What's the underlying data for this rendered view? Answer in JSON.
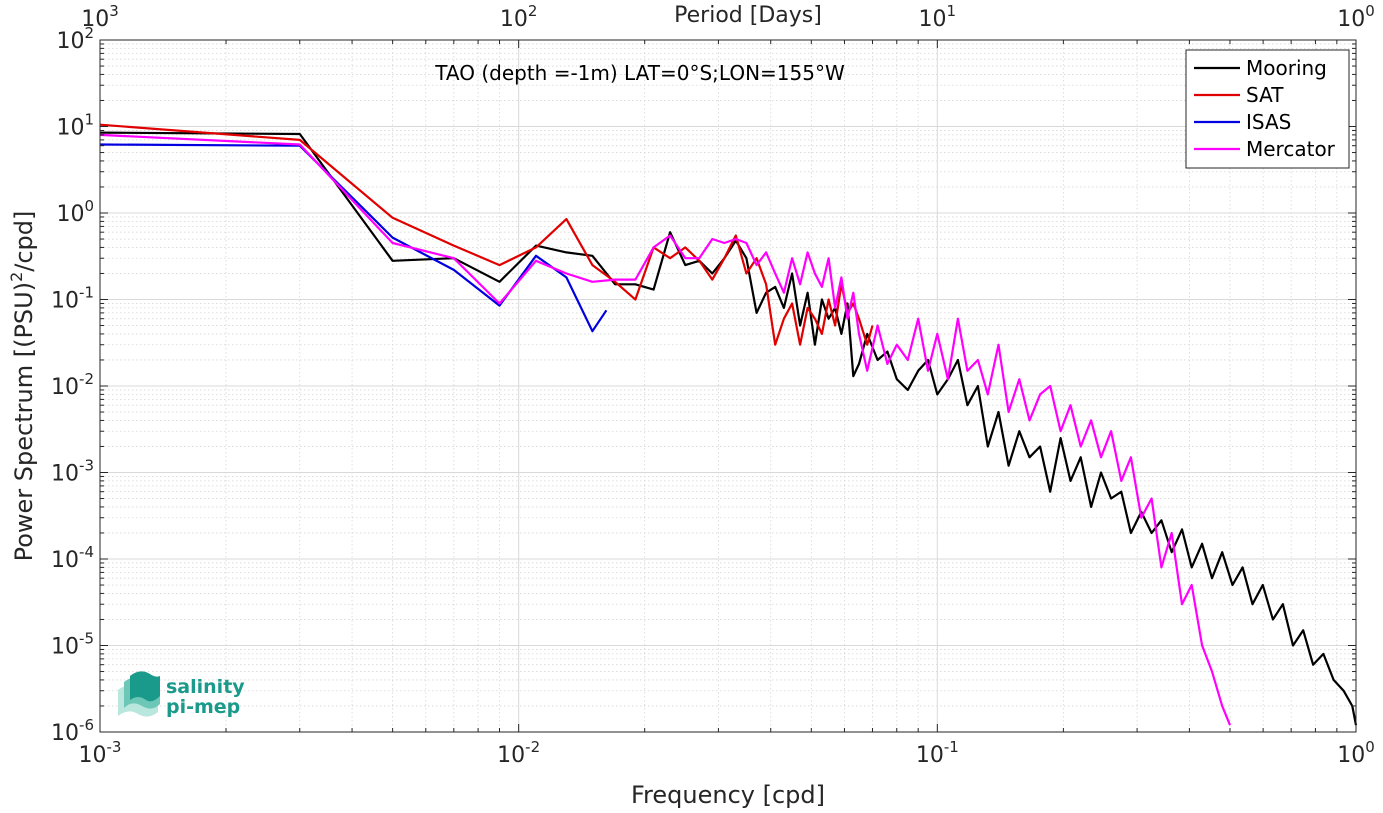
{
  "chart_data": {
    "type": "line",
    "title": "TAO (depth =-1m) LAT=0°S;LON=155°W",
    "xlabel": "Frequency [cpd]",
    "ylabel_main": "Power Spectrum [(PSU)",
    "ylabel_sup": "2",
    "ylabel_tail": "/cpd]",
    "top_xlabel": "Period [Days]",
    "xscale": "log",
    "yscale": "log",
    "xlim": [
      0.001,
      1
    ],
    "ylim": [
      1e-06,
      100
    ],
    "grid": true,
    "minor_grid": true,
    "legend_position": "top-right",
    "x_ticks": [
      {
        "value": 0.001,
        "base": "10",
        "exp": "-3"
      },
      {
        "value": 0.01,
        "base": "10",
        "exp": "-2"
      },
      {
        "value": 0.1,
        "base": "10",
        "exp": "-1"
      },
      {
        "value": 1,
        "base": "10",
        "exp": "0"
      }
    ],
    "top_ticks": [
      {
        "value": 0.001,
        "base": "10",
        "exp": "3"
      },
      {
        "value": 0.01,
        "base": "10",
        "exp": "2"
      },
      {
        "value": 0.1,
        "base": "10",
        "exp": "1"
      },
      {
        "value": 1,
        "base": "10",
        "exp": "0"
      }
    ],
    "y_ticks": [
      {
        "value": 100,
        "base": "10",
        "exp": "2"
      },
      {
        "value": 10,
        "base": "10",
        "exp": "1"
      },
      {
        "value": 1,
        "base": "10",
        "exp": "0"
      },
      {
        "value": 0.1,
        "base": "10",
        "exp": "-1"
      },
      {
        "value": 0.01,
        "base": "10",
        "exp": "-2"
      },
      {
        "value": 0.001,
        "base": "10",
        "exp": "-3"
      },
      {
        "value": 0.0001,
        "base": "10",
        "exp": "-4"
      },
      {
        "value": 1e-05,
        "base": "10",
        "exp": "-5"
      },
      {
        "value": 1e-06,
        "base": "10",
        "exp": "-6"
      }
    ],
    "series": [
      {
        "name": "Mooring",
        "color": "#000000",
        "x": [
          0.001,
          0.003,
          0.005,
          0.007,
          0.009,
          0.011,
          0.013,
          0.015,
          0.017,
          0.019,
          0.021,
          0.023,
          0.025,
          0.027,
          0.029,
          0.031,
          0.033,
          0.035,
          0.037,
          0.039,
          0.041,
          0.043,
          0.045,
          0.047,
          0.049,
          0.051,
          0.053,
          0.055,
          0.057,
          0.059,
          0.061,
          0.063,
          0.065,
          0.068,
          0.072,
          0.076,
          0.08,
          0.085,
          0.09,
          0.095,
          0.1,
          0.106,
          0.112,
          0.118,
          0.125,
          0.132,
          0.14,
          0.148,
          0.157,
          0.166,
          0.176,
          0.186,
          0.197,
          0.208,
          0.22,
          0.233,
          0.246,
          0.26,
          0.275,
          0.29,
          0.307,
          0.325,
          0.343,
          0.363,
          0.384,
          0.405,
          0.429,
          0.453,
          0.479,
          0.507,
          0.536,
          0.566,
          0.599,
          0.633,
          0.669,
          0.707,
          0.748,
          0.79,
          0.836,
          0.884,
          0.934,
          0.98,
          1.0
        ],
        "y": [
          8.5,
          8.2,
          0.28,
          0.3,
          0.16,
          0.42,
          0.35,
          0.32,
          0.15,
          0.15,
          0.13,
          0.6,
          0.25,
          0.28,
          0.2,
          0.3,
          0.48,
          0.3,
          0.07,
          0.12,
          0.14,
          0.08,
          0.2,
          0.05,
          0.12,
          0.03,
          0.1,
          0.06,
          0.08,
          0.04,
          0.09,
          0.013,
          0.018,
          0.04,
          0.02,
          0.025,
          0.012,
          0.009,
          0.015,
          0.02,
          0.008,
          0.012,
          0.02,
          0.006,
          0.01,
          0.002,
          0.005,
          0.0012,
          0.003,
          0.0015,
          0.002,
          0.0006,
          0.0025,
          0.0008,
          0.0015,
          0.0004,
          0.001,
          0.0005,
          0.0006,
          0.0002,
          0.00035,
          0.0002,
          0.00028,
          0.00012,
          0.00022,
          8e-05,
          0.00015,
          6e-05,
          0.00012,
          5e-05,
          8e-05,
          3e-05,
          5e-05,
          2e-05,
          3e-05,
          1e-05,
          1.5e-05,
          6e-06,
          8e-06,
          4e-06,
          3e-06,
          2e-06,
          1.2e-06
        ]
      },
      {
        "name": "SAT",
        "color": "#e00000",
        "x": [
          0.001,
          0.003,
          0.005,
          0.007,
          0.009,
          0.011,
          0.013,
          0.015,
          0.017,
          0.019,
          0.021,
          0.023,
          0.025,
          0.027,
          0.029,
          0.031,
          0.033,
          0.035,
          0.037,
          0.039,
          0.041,
          0.043,
          0.045,
          0.047,
          0.049,
          0.051,
          0.053,
          0.055,
          0.057,
          0.059,
          0.061,
          0.063,
          0.065,
          0.068,
          0.07
        ],
        "y": [
          10.5,
          7.0,
          0.88,
          0.42,
          0.25,
          0.4,
          0.85,
          0.25,
          0.16,
          0.1,
          0.4,
          0.3,
          0.4,
          0.28,
          0.17,
          0.3,
          0.55,
          0.2,
          0.3,
          0.15,
          0.03,
          0.06,
          0.09,
          0.03,
          0.08,
          0.06,
          0.04,
          0.1,
          0.05,
          0.15,
          0.07,
          0.09,
          0.06,
          0.03,
          0.05
        ]
      },
      {
        "name": "ISAS",
        "color": "#0000e0",
        "x": [
          0.001,
          0.003,
          0.005,
          0.007,
          0.009,
          0.011,
          0.013,
          0.015,
          0.0162
        ],
        "y": [
          6.2,
          6.0,
          0.52,
          0.22,
          0.085,
          0.32,
          0.18,
          0.043,
          0.075
        ]
      },
      {
        "name": "Mercator",
        "color": "#ff00ff",
        "x": [
          0.001,
          0.003,
          0.005,
          0.007,
          0.009,
          0.011,
          0.013,
          0.015,
          0.017,
          0.019,
          0.021,
          0.023,
          0.025,
          0.027,
          0.029,
          0.031,
          0.033,
          0.035,
          0.037,
          0.039,
          0.041,
          0.043,
          0.045,
          0.047,
          0.049,
          0.051,
          0.053,
          0.055,
          0.057,
          0.059,
          0.061,
          0.063,
          0.065,
          0.068,
          0.072,
          0.076,
          0.08,
          0.085,
          0.09,
          0.095,
          0.1,
          0.106,
          0.112,
          0.118,
          0.125,
          0.132,
          0.14,
          0.148,
          0.157,
          0.166,
          0.176,
          0.186,
          0.197,
          0.208,
          0.22,
          0.233,
          0.246,
          0.26,
          0.275,
          0.29,
          0.307,
          0.325,
          0.343,
          0.363,
          0.384,
          0.405,
          0.429,
          0.453,
          0.479,
          0.5
        ],
        "y": [
          8.0,
          6.2,
          0.45,
          0.3,
          0.09,
          0.28,
          0.2,
          0.16,
          0.17,
          0.17,
          0.4,
          0.55,
          0.3,
          0.3,
          0.5,
          0.45,
          0.5,
          0.45,
          0.25,
          0.35,
          0.2,
          0.12,
          0.3,
          0.15,
          0.35,
          0.2,
          0.14,
          0.3,
          0.08,
          0.18,
          0.06,
          0.12,
          0.04,
          0.015,
          0.05,
          0.018,
          0.03,
          0.02,
          0.06,
          0.015,
          0.04,
          0.012,
          0.06,
          0.015,
          0.02,
          0.008,
          0.03,
          0.005,
          0.012,
          0.004,
          0.008,
          0.01,
          0.003,
          0.006,
          0.002,
          0.004,
          0.0015,
          0.003,
          0.0008,
          0.0015,
          0.0003,
          0.0005,
          8e-05,
          0.0002,
          3e-05,
          5e-05,
          1e-05,
          5e-06,
          2e-06,
          1.2e-06
        ]
      }
    ]
  },
  "logo": {
    "line1": "salinity",
    "line2": "pi-mep",
    "color": "#1a9a8a"
  }
}
